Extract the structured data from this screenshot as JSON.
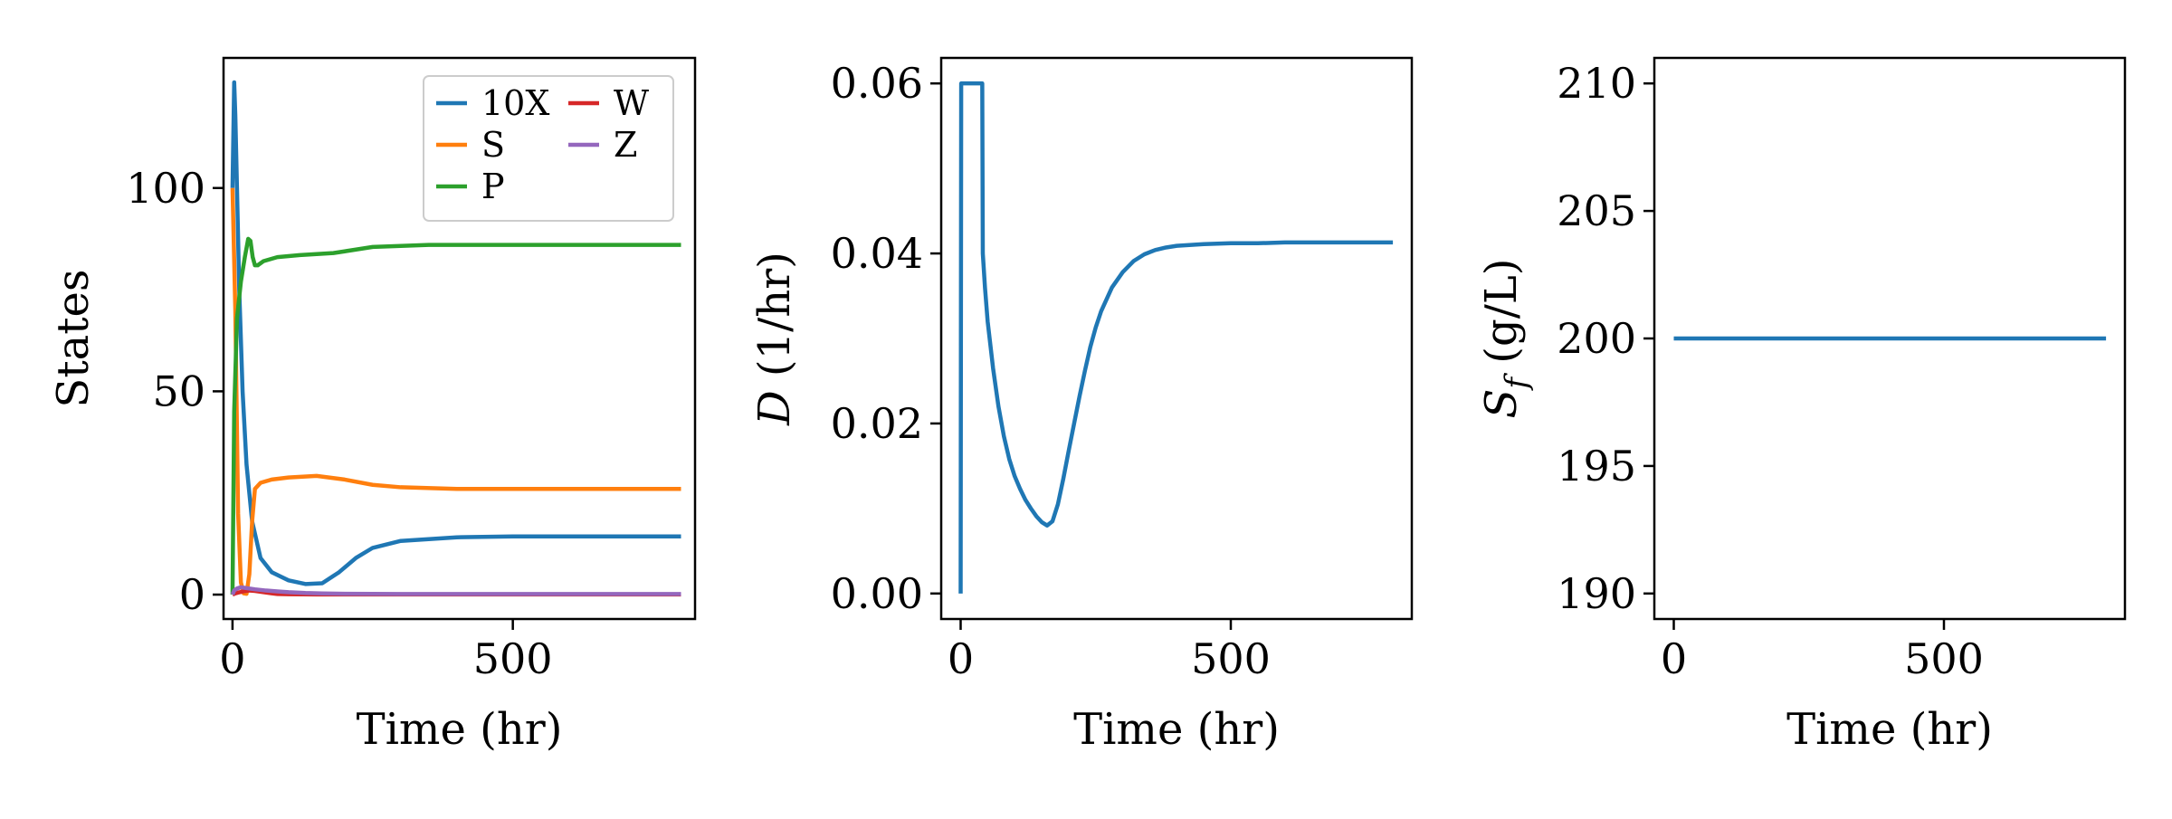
{
  "chart_data": [
    {
      "type": "line",
      "xlabel": "Time (hr)",
      "ylabel": "States",
      "xlim": [
        -16,
        825
      ],
      "ylim": [
        -6,
        132
      ],
      "xticks": [
        0,
        500
      ],
      "yticks": [
        0,
        50,
        100
      ],
      "legend": {
        "placement": "top-right",
        "columns": 2
      },
      "series": [
        {
          "name": "10X",
          "color": "#1f77b4",
          "x": [
            0,
            3,
            5,
            8,
            12,
            18,
            25,
            35,
            50,
            70,
            100,
            130,
            160,
            190,
            220,
            250,
            300,
            400,
            500,
            600,
            700,
            800
          ],
          "y": [
            100,
            126,
            118,
            100,
            75,
            50,
            32,
            18,
            9,
            5.5,
            3.5,
            2.6,
            2.8,
            5.5,
            9,
            11.5,
            13.2,
            14.1,
            14.3,
            14.3,
            14.3,
            14.3
          ]
        },
        {
          "name": "S",
          "color": "#ff7f0e",
          "x": [
            0,
            5,
            10,
            15,
            20,
            25,
            30,
            35,
            40,
            50,
            70,
            100,
            150,
            200,
            250,
            300,
            400,
            500,
            600,
            700,
            800
          ],
          "y": [
            100,
            70,
            20,
            3,
            0.3,
            0.2,
            5,
            18,
            26,
            27.5,
            28.3,
            28.8,
            29.2,
            28.3,
            27,
            26.4,
            26,
            26,
            26,
            26,
            26
          ]
        },
        {
          "name": "P",
          "color": "#2ca02c",
          "x": [
            0,
            3,
            8,
            15,
            22,
            28,
            32,
            36,
            40,
            45,
            55,
            80,
            120,
            180,
            250,
            350,
            500,
            650,
            800
          ],
          "y": [
            0,
            45,
            68,
            77,
            83,
            87.5,
            87,
            83,
            81,
            81,
            82,
            83,
            83.5,
            84,
            85.5,
            86,
            86,
            86,
            86
          ]
        },
        {
          "name": "W",
          "color": "#d62728",
          "x": [
            0,
            5,
            10,
            20,
            30,
            40,
            50,
            60,
            70,
            80,
            100,
            150,
            200,
            300,
            400,
            500,
            600,
            700,
            800
          ],
          "y": [
            0,
            0.3,
            0.5,
            0.8,
            1.0,
            0.9,
            0.7,
            0.5,
            0.3,
            0.15,
            0.08,
            0.05,
            0.05,
            0.05,
            0.05,
            0.05,
            0.05,
            0.05,
            0.05
          ]
        },
        {
          "name": "Z",
          "color": "#9467bd",
          "x": [
            0,
            3,
            8,
            15,
            25,
            40,
            60,
            80,
            100,
            130,
            160,
            200,
            300,
            400,
            500,
            600,
            700,
            800
          ],
          "y": [
            0,
            1.0,
            1.5,
            1.8,
            1.6,
            1.3,
            1.0,
            0.8,
            0.6,
            0.4,
            0.3,
            0.2,
            0.15,
            0.15,
            0.15,
            0.15,
            0.15,
            0.15
          ]
        }
      ]
    },
    {
      "type": "line",
      "xlabel": "Time (hr)",
      "ylabel": "D (1/hr)",
      "ylabel_parts": {
        "symbol": "D",
        "units": " (1/hr)"
      },
      "xlim": [
        -36,
        835
      ],
      "ylim": [
        -0.003,
        0.063
      ],
      "xticks": [
        0,
        500
      ],
      "yticks": [
        0.0,
        0.02,
        0.04,
        0.06
      ],
      "ytick_labels": [
        "0.00",
        "0.02",
        "0.04",
        "0.06"
      ],
      "series": [
        {
          "name": "",
          "color": "#1f77b4",
          "x": [
            0,
            1,
            2,
            40,
            41,
            45,
            50,
            60,
            70,
            80,
            90,
            100,
            110,
            120,
            130,
            140,
            150,
            160,
            170,
            180,
            190,
            200,
            210,
            220,
            230,
            240,
            250,
            260,
            280,
            300,
            320,
            340,
            360,
            380,
            400,
            450,
            500,
            550,
            600,
            650,
            700,
            750,
            800
          ],
          "y": [
            0,
            0.06,
            0.06,
            0.06,
            0.04,
            0.036,
            0.032,
            0.0265,
            0.022,
            0.0185,
            0.0158,
            0.0138,
            0.0123,
            0.011,
            0.01,
            0.0091,
            0.0084,
            0.008,
            0.0085,
            0.0105,
            0.0135,
            0.0168,
            0.02,
            0.0232,
            0.0262,
            0.029,
            0.0313,
            0.0332,
            0.036,
            0.0378,
            0.0391,
            0.0399,
            0.0404,
            0.0407,
            0.0409,
            0.0411,
            0.0412,
            0.0412,
            0.0413,
            0.0413,
            0.0413,
            0.0413,
            0.0413
          ]
        }
      ]
    },
    {
      "type": "line",
      "xlabel": "Time (hr)",
      "ylabel": "S_f (g/L)",
      "ylabel_parts": {
        "symbol": "S",
        "subscript": "f",
        "units": " (g/L)"
      },
      "xlim": [
        -36,
        835
      ],
      "ylim": [
        189,
        211
      ],
      "xticks": [
        0,
        500
      ],
      "yticks": [
        190,
        195,
        200,
        205,
        210
      ],
      "series": [
        {
          "name": "",
          "color": "#1f77b4",
          "x": [
            0,
            800
          ],
          "y": [
            200,
            200
          ]
        }
      ]
    }
  ]
}
